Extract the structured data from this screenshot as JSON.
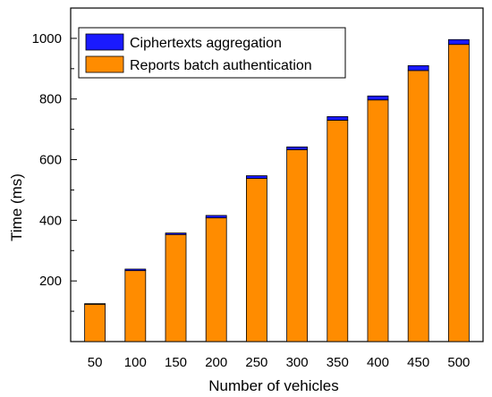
{
  "chart_data": {
    "type": "bar",
    "stacked": true,
    "categories": [
      "50",
      "100",
      "150",
      "200",
      "250",
      "300",
      "350",
      "400",
      "450",
      "500"
    ],
    "series": [
      {
        "name": "Reports batch authentication",
        "color": "#ff8c00",
        "values": [
          123,
          234,
          353,
          408,
          538,
          633,
          730,
          797,
          894,
          980
        ]
      },
      {
        "name": "Ciphertexts aggregation",
        "color": "#1a1aff",
        "values": [
          2,
          5,
          5,
          8,
          9,
          9,
          12,
          13,
          16,
          16
        ]
      }
    ],
    "xlabel": "Number of vehicles",
    "ylabel": "Time (ms)",
    "ylim": [
      0,
      1100
    ],
    "yticks": [
      200,
      400,
      600,
      800,
      1000
    ],
    "grid": false,
    "legend_position": "top-left"
  }
}
